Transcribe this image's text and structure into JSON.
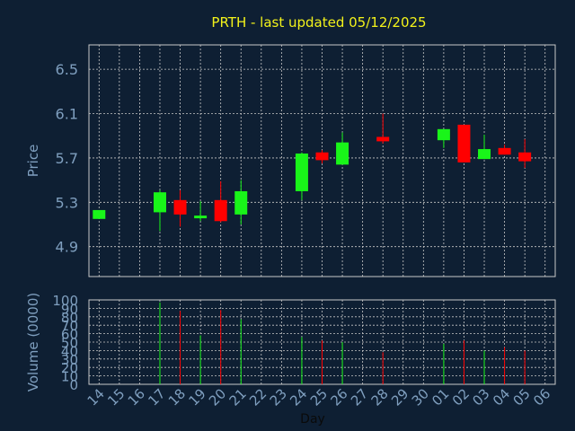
{
  "title": "PRTH - last updated 05/12/2025",
  "colors": {
    "background": "#0e1f33",
    "title": "#f2f21a",
    "axis_text": "#7f9fbf",
    "grid": "#c8c8c8",
    "up": "#19f519",
    "down": "#ff0000"
  },
  "chart_data": [
    {
      "type": "candlestick",
      "ylabel": "Price",
      "ylim": [
        4.63,
        6.72
      ],
      "yticks": [
        4.9,
        5.3,
        5.7,
        6.1,
        6.5
      ],
      "ytick_labels": [
        "4.9",
        "5.3",
        "5.7",
        "6.1",
        "6.5"
      ],
      "grid": true,
      "x": [
        "14",
        "15",
        "16",
        "17",
        "18",
        "19",
        "20",
        "21",
        "22",
        "23",
        "24",
        "25",
        "26",
        "27",
        "28",
        "29",
        "30",
        "01",
        "02",
        "03",
        "04",
        "05",
        "06"
      ],
      "candles": [
        {
          "x": "14",
          "open": 5.15,
          "high": 5.23,
          "low": 5.15,
          "close": 5.23
        },
        {
          "x": "17",
          "open": 5.21,
          "high": 5.41,
          "low": 5.04,
          "close": 5.39
        },
        {
          "x": "18",
          "open": 5.32,
          "high": 5.41,
          "low": 5.08,
          "close": 5.19
        },
        {
          "x": "19",
          "open": 5.16,
          "high": 5.31,
          "low": 5.13,
          "close": 5.18
        },
        {
          "x": "20",
          "open": 5.32,
          "high": 5.49,
          "low": 5.12,
          "close": 5.13
        },
        {
          "x": "21",
          "open": 5.19,
          "high": 5.5,
          "low": 5.1,
          "close": 5.4
        },
        {
          "x": "24",
          "open": 5.4,
          "high": 5.75,
          "low": 5.32,
          "close": 5.74
        },
        {
          "x": "25",
          "open": 5.75,
          "high": 5.77,
          "low": 5.65,
          "close": 5.68
        },
        {
          "x": "26",
          "open": 5.64,
          "high": 5.93,
          "low": 5.64,
          "close": 5.84
        },
        {
          "x": "28",
          "open": 5.89,
          "high": 6.1,
          "low": 5.83,
          "close": 5.85
        },
        {
          "x": "01",
          "open": 5.86,
          "high": 5.96,
          "low": 5.79,
          "close": 5.96
        },
        {
          "x": "02",
          "open": 6.0,
          "high": 6.0,
          "low": 5.66,
          "close": 5.66
        },
        {
          "x": "03",
          "open": 5.69,
          "high": 5.91,
          "low": 5.69,
          "close": 5.78
        },
        {
          "x": "04",
          "open": 5.79,
          "high": 5.82,
          "low": 5.73,
          "close": 5.73
        },
        {
          "x": "05",
          "open": 5.75,
          "high": 5.87,
          "low": 5.61,
          "close": 5.67
        }
      ]
    },
    {
      "type": "bar",
      "ylabel": "Volume (0000)",
      "xlabel": "Day",
      "ylim": [
        0,
        100
      ],
      "yticks": [
        0,
        10,
        20,
        30,
        40,
        50,
        60,
        70,
        80,
        90,
        100
      ],
      "ytick_labels": [
        "0",
        "10",
        "20",
        "30",
        "40",
        "50",
        "60",
        "70",
        "80",
        "90",
        "100"
      ],
      "grid": true,
      "x": [
        "14",
        "15",
        "16",
        "17",
        "18",
        "19",
        "20",
        "21",
        "22",
        "23",
        "24",
        "25",
        "26",
        "27",
        "28",
        "29",
        "30",
        "01",
        "02",
        "03",
        "04",
        "05",
        "06"
      ],
      "bars": [
        {
          "x": "17",
          "value": 97,
          "direction": "up"
        },
        {
          "x": "18",
          "value": 87,
          "direction": "down"
        },
        {
          "x": "19",
          "value": 58,
          "direction": "up"
        },
        {
          "x": "20",
          "value": 88,
          "direction": "down"
        },
        {
          "x": "21",
          "value": 77,
          "direction": "up"
        },
        {
          "x": "24",
          "value": 56,
          "direction": "up"
        },
        {
          "x": "25",
          "value": 52,
          "direction": "down"
        },
        {
          "x": "26",
          "value": 50,
          "direction": "up"
        },
        {
          "x": "28",
          "value": 38,
          "direction": "down"
        },
        {
          "x": "01",
          "value": 48,
          "direction": "up"
        },
        {
          "x": "02",
          "value": 52,
          "direction": "down"
        },
        {
          "x": "03",
          "value": 40,
          "direction": "up"
        },
        {
          "x": "04",
          "value": 44,
          "direction": "down"
        },
        {
          "x": "05",
          "value": 40,
          "direction": "down"
        }
      ]
    }
  ]
}
